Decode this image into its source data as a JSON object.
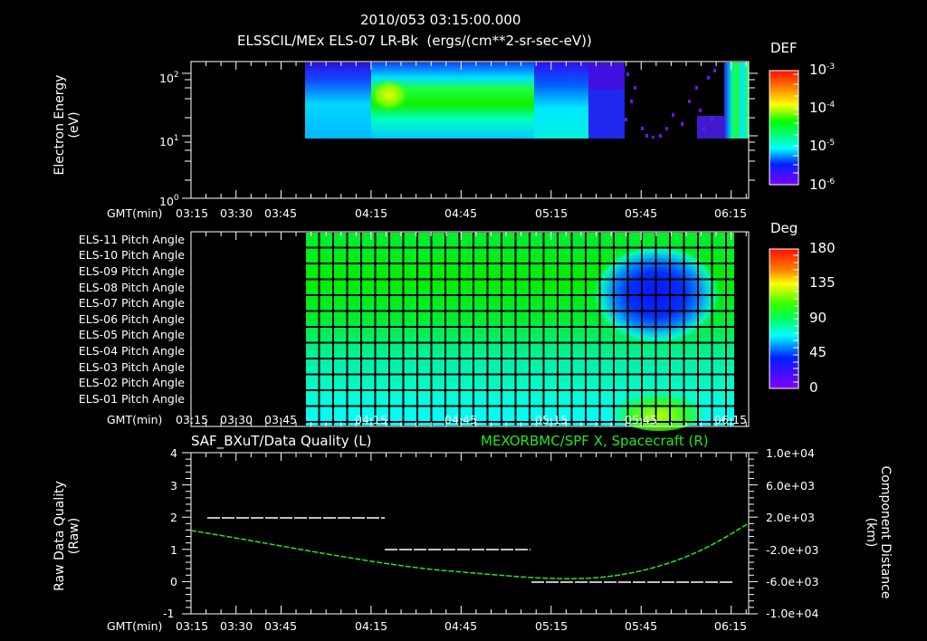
{
  "header": {
    "datetime": "2010/053 03:15:00.000",
    "subtitle": "ELSSCIL/MEx ELS-07 LR-Bk  (ergs/(cm**2-sr-sec-eV))"
  },
  "time_axis": {
    "label": "GMT(min)",
    "ticks": [
      "03:15",
      "03:30",
      "03:45",
      "04:15",
      "04:45",
      "05:15",
      "05:45",
      "06:15"
    ]
  },
  "panel1": {
    "ylabel_line1": "Electron Energy",
    "ylabel_line2": "(eV)",
    "yticks": [
      "10",
      "10",
      "10"
    ],
    "yticks_exp": [
      "2",
      "1",
      "0"
    ],
    "colorbar": {
      "title": "DEF",
      "ticks_base": [
        "10",
        "10",
        "10",
        "10"
      ],
      "ticks_exp": [
        "-3",
        "-4",
        "-5",
        "-6"
      ]
    }
  },
  "panel2": {
    "rows": [
      "ELS-11 Pitch Angle",
      "ELS-10 Pitch Angle",
      "ELS-09 Pitch Angle",
      "ELS-08 Pitch Angle",
      "ELS-07 Pitch Angle",
      "ELS-06 Pitch Angle",
      "ELS-05 Pitch Angle",
      "ELS-04 Pitch Angle",
      "ELS-03 Pitch Angle",
      "ELS-02 Pitch Angle",
      "ELS-01 Pitch Angle"
    ],
    "colorbar": {
      "title": "Deg",
      "ticks": [
        "180",
        "135",
        "90",
        "45",
        "0"
      ]
    }
  },
  "panel3": {
    "left_title": "SAF_BXuT/Data Quality (L)",
    "right_title": "MEXORBMC/SPF X, Spacecraft (R)",
    "ylabel_line1": "Raw Data Quality",
    "ylabel_line2": "(Raw)",
    "yticks_left": [
      "4",
      "3",
      "2",
      "1",
      "0",
      "-1"
    ],
    "yticks_right": [
      "1.0e+04",
      "6.0e+03",
      "2.0e+03",
      "-2.0e+03",
      "-6.0e+03",
      "-1.0e+04"
    ],
    "ylabel_right_line1": "Component Distance",
    "ylabel_right_line2": "(km)",
    "right_title_color": "#22e622"
  },
  "chart_data": [
    {
      "type": "heatmap",
      "title": "ELSSCIL/MEx ELS-07 LR-Bk (ergs/(cm**2-sr-sec-eV))",
      "xlabel": "GMT(min)",
      "ylabel": "Electron Energy (eV)",
      "yscale": "log",
      "ylim": [
        1,
        200
      ],
      "x_ticks": [
        "03:15",
        "03:30",
        "03:45",
        "04:15",
        "04:45",
        "05:15",
        "05:45",
        "06:15"
      ],
      "data_time_range": [
        "03:53",
        "06:20"
      ],
      "data_energy_range_eV": [
        10,
        200
      ],
      "colorbar": {
        "label": "DEF",
        "scale": "log",
        "range": [
          1e-06,
          0.001
        ]
      },
      "features": [
        {
          "time": "03:53-04:15",
          "level": "~1e-5.5 (blue)"
        },
        {
          "time": "04:15-04:25",
          "energy_eV": "30-60",
          "level": "~2e-4 (yellow-green peak)"
        },
        {
          "time": "04:25-05:10",
          "energy_eV": "15-60",
          "level": "~1e-4 (green)"
        },
        {
          "time": "05:10-05:35",
          "level": "~1e-5 (cyan/blue), decaying"
        },
        {
          "time": "05:35-06:10",
          "level": "sparse, <1e-6 (purple dots)"
        },
        {
          "time": "06:10-06:20",
          "level": "~1e-4 (green burst)"
        }
      ]
    },
    {
      "type": "heatmap",
      "title": "Pitch Angle",
      "xlabel": "GMT(min)",
      "categories": [
        "ELS-11",
        "ELS-10",
        "ELS-09",
        "ELS-08",
        "ELS-07",
        "ELS-06",
        "ELS-05",
        "ELS-04",
        "ELS-03",
        "ELS-02",
        "ELS-01"
      ],
      "colorbar": {
        "label": "Deg",
        "range": [
          0,
          180
        ],
        "ticks": [
          0,
          45,
          90,
          135,
          180
        ]
      },
      "data_time_range": [
        "03:53",
        "06:10"
      ],
      "baseline_deg_by_row": [
        95,
        100,
        100,
        100,
        98,
        92,
        85,
        78,
        70,
        62,
        58
      ],
      "features": [
        {
          "time": "05:35-06:05",
          "rows": "ELS-09..ELS-06",
          "value_deg": "~20-40 (blue minimum)"
        },
        {
          "time": "05:40-06:00",
          "rows": "ELS-02..ELS-01",
          "value_deg": "~110-125 (yellow-green)"
        }
      ]
    },
    {
      "type": "line",
      "title": "SAF_BXuT/Data Quality (L) ; MEXORBMC/SPF X, Spacecraft (R)",
      "xlabel": "GMT(min)",
      "ylabel": "Raw Data Quality (Raw)",
      "ylabel_right": "Component Distance (km)",
      "ylim": [
        -1,
        4
      ],
      "ylim_right": [
        -10000,
        10000
      ],
      "series": [
        {
          "name": "Data Quality (L)",
          "axis": "left",
          "color": "#ffffff",
          "style": "dashed-step",
          "x": [
            "03:20",
            "04:17",
            "04:17",
            "05:05",
            "05:05",
            "06:10"
          ],
          "y": [
            2,
            2,
            1,
            1,
            0,
            0
          ]
        },
        {
          "name": "MEXORBMC/SPF X (R)",
          "axis": "right",
          "color": "#22e622",
          "style": "dotted",
          "x": [
            "03:15",
            "03:45",
            "04:15",
            "04:45",
            "05:15",
            "05:30",
            "05:45",
            "06:00",
            "06:20"
          ],
          "y": [
            480,
            -1000,
            -2750,
            -4250,
            -5350,
            -5500,
            -4800,
            -2500,
            1500
          ]
        }
      ]
    }
  ]
}
